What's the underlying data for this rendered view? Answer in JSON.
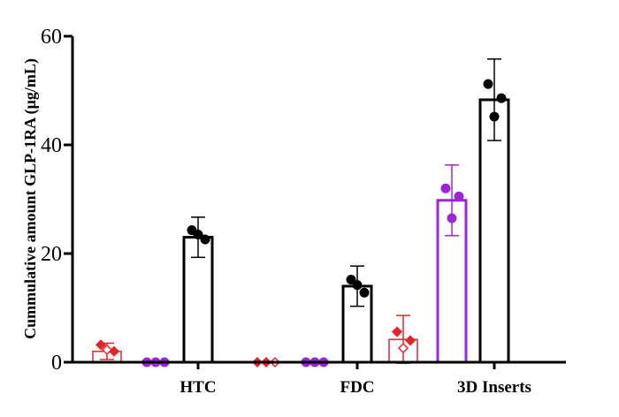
{
  "chart_data": {
    "type": "bar",
    "title": "",
    "xlabel": "",
    "ylabel": "Cummulative amount GLP-1RA (μg/mL)",
    "categories": [
      "HTC",
      "FDC",
      "3D Inserts"
    ],
    "ylim": [
      0,
      60
    ],
    "yticks": [
      0,
      20,
      40,
      60
    ],
    "grid": false,
    "legend": "none",
    "series": [
      {
        "color": "#e8232a",
        "marker": "diamond",
        "values": [
          2.0,
          0,
          4.2
        ],
        "errors": [
          1.5,
          0,
          4.4
        ],
        "points": [
          [
            3.2,
            2.0,
            2.3
          ],
          [
            0,
            0,
            0
          ],
          [
            5.6,
            4.0,
            2.6
          ]
        ]
      },
      {
        "color": "#9b25d8",
        "marker": "circle",
        "values": [
          0,
          0,
          29.8
        ],
        "errors": [
          0,
          0,
          6.5
        ],
        "points": [
          [
            0,
            0,
            0
          ],
          [
            0,
            0,
            0
          ],
          [
            32.0,
            30.5,
            26.5
          ]
        ]
      },
      {
        "color": "#000000",
        "marker": "circle",
        "values": [
          23.0,
          14.0,
          48.3
        ],
        "errors": [
          3.7,
          3.7,
          7.5
        ],
        "points": [
          [
            24.3,
            22.6,
            23.5
          ],
          [
            15.2,
            12.8,
            14.2
          ],
          [
            51.2,
            48.6,
            45.2
          ]
        ]
      }
    ]
  }
}
